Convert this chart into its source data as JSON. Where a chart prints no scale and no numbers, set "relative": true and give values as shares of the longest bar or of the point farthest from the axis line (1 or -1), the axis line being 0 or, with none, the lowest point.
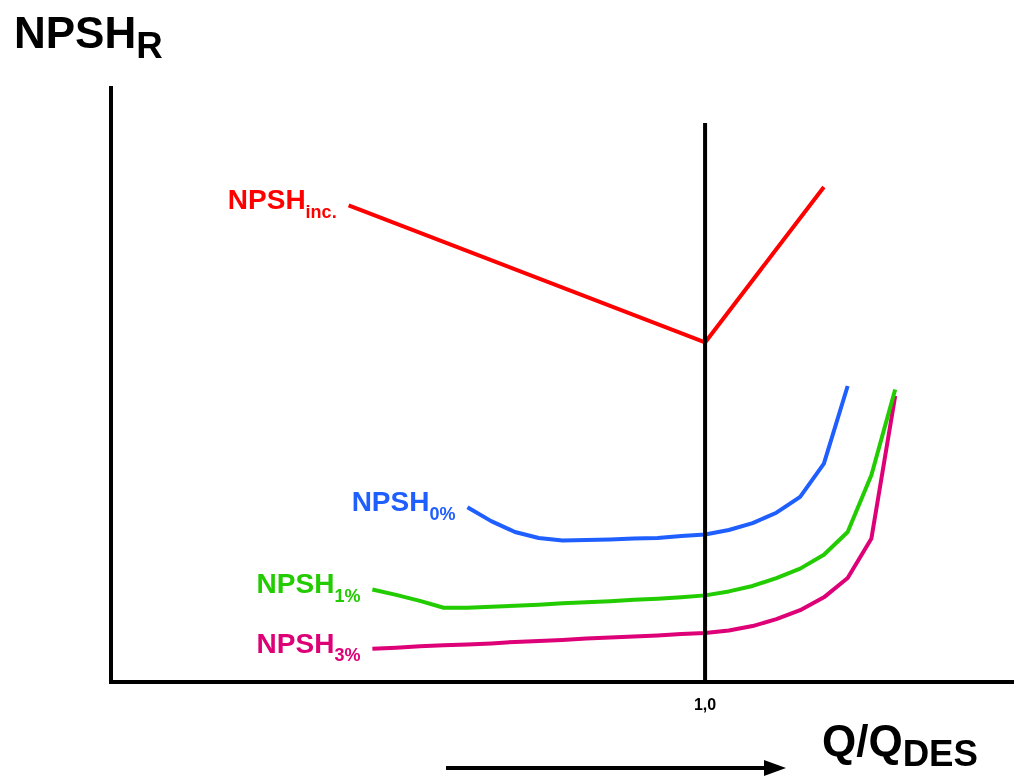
{
  "chart_data": {
    "type": "line",
    "relative": true,
    "ylabel": "NPSH$_{R}$",
    "xlabel": "Q/Q$_{DES}$",
    "annotations": [
      "1,0"
    ],
    "grid": false,
    "legend": false,
    "marker": "none",
    "line_style": "solid",
    "categories": [
      null,
      null,
      null,
      null,
      null,
      null,
      null,
      null,
      null,
      null,
      null,
      null,
      null,
      null,
      null,
      null,
      null,
      null,
      null,
      null,
      null,
      null,
      null,
      null,
      null,
      null,
      null,
      null,
      null,
      null,
      null,
      null,
      null,
      null,
      null,
      null,
      null,
      null,
      null
    ],
    "series": [
      {
        "name": "NPSH$_{inc.}$",
        "color": "#ff0000",
        "values": [
          null,
          null,
          null,
          null,
          null,
          null,
          null,
          null,
          null,
          null,
          0.963,
          null,
          null,
          null,
          null,
          null,
          null,
          null,
          null,
          null,
          null,
          null,
          null,
          null,
          null,
          0.686,
          null,
          null,
          null,
          null,
          1.0,
          null,
          null,
          null,
          null,
          null,
          null,
          null,
          null
        ]
      },
      {
        "name": "NPSH$_{0%}$",
        "color": "#1f5fff",
        "values": [
          null,
          null,
          null,
          null,
          null,
          null,
          null,
          null,
          null,
          null,
          null,
          null,
          null,
          null,
          null,
          0.353,
          0.325,
          0.303,
          0.291,
          0.286,
          0.287,
          0.288,
          0.29,
          0.291,
          0.295,
          0.298,
          0.307,
          0.321,
          0.342,
          0.374,
          0.441,
          0.598,
          null,
          null,
          null,
          null,
          null,
          null,
          null
        ]
      },
      {
        "name": "NPSH$_{1%}$",
        "color": "#22cc00",
        "values": [
          null,
          null,
          null,
          null,
          null,
          null,
          null,
          null,
          null,
          null,
          null,
          0.187,
          0.176,
          0.164,
          0.15,
          0.15,
          0.152,
          0.154,
          0.156,
          0.159,
          0.161,
          0.163,
          0.166,
          0.168,
          0.171,
          0.175,
          0.183,
          0.194,
          0.21,
          0.229,
          0.257,
          0.303,
          0.418,
          0.591,
          null,
          null,
          null,
          null,
          null
        ]
      },
      {
        "name": "NPSH$_{3%}$",
        "color": "#dd0077",
        "values": [
          null,
          null,
          null,
          null,
          null,
          null,
          null,
          null,
          null,
          null,
          null,
          0.067,
          0.069,
          0.072,
          0.074,
          0.076,
          0.078,
          0.081,
          0.083,
          0.085,
          0.088,
          0.09,
          0.092,
          0.094,
          0.097,
          0.099,
          0.104,
          0.113,
          0.127,
          0.145,
          0.171,
          0.21,
          0.29,
          0.578,
          null,
          null,
          null,
          null,
          null
        ]
      }
    ]
  }
}
